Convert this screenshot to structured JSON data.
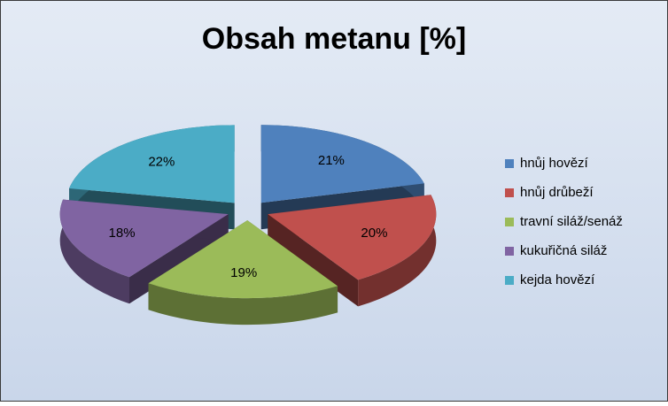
{
  "chart_data": {
    "type": "pie",
    "title": "Obsah metanu [%]",
    "categories": [
      "hnůj hovězí",
      "hnůj drůbeží",
      "travní siláž/senáž",
      "kukuřičná siláž",
      "kejda hovězí"
    ],
    "values": [
      21,
      20,
      19,
      18,
      22
    ],
    "value_labels": [
      "21%",
      "20%",
      "19%",
      "18%",
      "22%"
    ],
    "colors": [
      "#4f81bd",
      "#c0504d",
      "#9bbb59",
      "#8064a2",
      "#4bacc6"
    ],
    "legend": "right"
  }
}
